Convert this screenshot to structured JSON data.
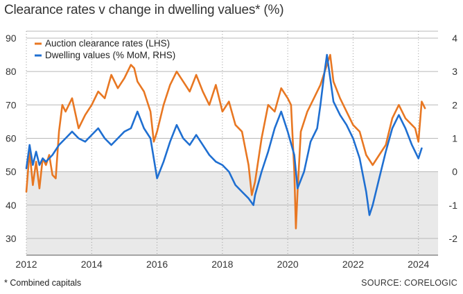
{
  "title": "Clearance rates v change in dwelling values* (%)",
  "footnote": "* Combined capitals",
  "source": "SOURCE: CORELOGIC",
  "chart_data": {
    "type": "line",
    "title": "Clearance rates v change in dwelling values* (%)",
    "x_ticks": [
      "2012",
      "2014",
      "2016",
      "2018",
      "2020",
      "2022",
      "2024"
    ],
    "x_range": [
      2012,
      2024.6
    ],
    "y_left": {
      "label": "LHS",
      "ticks": [
        "30",
        "40",
        "50",
        "60",
        "70",
        "80",
        "90"
      ],
      "range": [
        25,
        90
      ]
    },
    "y_right": {
      "label": "RHS",
      "ticks": [
        "-2",
        "-1",
        "0",
        "1",
        "2",
        "3",
        "4"
      ],
      "range": [
        -2.5,
        4
      ]
    },
    "shaded_region": "below 50 (LHS) / below 0 (RHS)",
    "grid": "vertical dotted lines at year ticks",
    "legend_position": "top-left",
    "series": [
      {
        "name": "Auction clearance rates (LHS)",
        "axis": "left",
        "color": "#E87722",
        "x": [
          2012.0,
          2012.1,
          2012.2,
          2012.3,
          2012.4,
          2012.5,
          2012.6,
          2012.7,
          2012.8,
          2012.9,
          2013.0,
          2013.1,
          2013.2,
          2013.4,
          2013.6,
          2013.8,
          2014.0,
          2014.2,
          2014.4,
          2014.6,
          2014.8,
          2015.0,
          2015.2,
          2015.3,
          2015.4,
          2015.6,
          2015.8,
          2015.9,
          2016.0,
          2016.2,
          2016.4,
          2016.6,
          2016.8,
          2017.0,
          2017.2,
          2017.4,
          2017.6,
          2017.8,
          2018.0,
          2018.2,
          2018.4,
          2018.6,
          2018.8,
          2018.9,
          2019.0,
          2019.2,
          2019.4,
          2019.6,
          2019.8,
          2020.0,
          2020.1,
          2020.2,
          2020.25,
          2020.3,
          2020.4,
          2020.6,
          2020.8,
          2021.0,
          2021.2,
          2021.3,
          2021.4,
          2021.6,
          2021.8,
          2022.0,
          2022.2,
          2022.4,
          2022.6,
          2022.8,
          2023.0,
          2023.2,
          2023.4,
          2023.6,
          2023.8,
          2023.9,
          2024.0,
          2024.1,
          2024.2
        ],
        "values": [
          44,
          56,
          46,
          53,
          45,
          54,
          52,
          55,
          49,
          48,
          62,
          70,
          68,
          72,
          63,
          67,
          70,
          74,
          72,
          79,
          75,
          78,
          82,
          81,
          77,
          74,
          68,
          59,
          62,
          70,
          76,
          80,
          77,
          74,
          79,
          74,
          70,
          76,
          68,
          71,
          64,
          62,
          52,
          43,
          47,
          60,
          70,
          68,
          75,
          72,
          70,
          50,
          33,
          44,
          62,
          68,
          72,
          76,
          82,
          85,
          77,
          72,
          68,
          64,
          62,
          55,
          52,
          55,
          58,
          66,
          70,
          66,
          64,
          63,
          59,
          71,
          69
        ]
      },
      {
        "name": "Dwelling values (% MoM, RHS)",
        "axis": "right",
        "color": "#1F6FD1",
        "x": [
          2012.0,
          2012.1,
          2012.2,
          2012.3,
          2012.4,
          2012.5,
          2012.6,
          2012.8,
          2013.0,
          2013.2,
          2013.4,
          2013.6,
          2013.8,
          2014.0,
          2014.2,
          2014.4,
          2014.6,
          2014.8,
          2015.0,
          2015.2,
          2015.4,
          2015.6,
          2015.8,
          2016.0,
          2016.2,
          2016.4,
          2016.6,
          2016.8,
          2017.0,
          2017.2,
          2017.4,
          2017.6,
          2017.8,
          2018.0,
          2018.2,
          2018.4,
          2018.6,
          2018.8,
          2018.95,
          2019.0,
          2019.2,
          2019.4,
          2019.6,
          2019.8,
          2020.0,
          2020.2,
          2020.3,
          2020.5,
          2020.7,
          2020.9,
          2021.0,
          2021.1,
          2021.2,
          2021.3,
          2021.4,
          2021.6,
          2021.8,
          2022.0,
          2022.2,
          2022.4,
          2022.5,
          2022.6,
          2022.8,
          2023.0,
          2023.2,
          2023.4,
          2023.6,
          2023.8,
          2024.0,
          2024.1
        ],
        "values": [
          0.1,
          0.8,
          0.2,
          0.6,
          0.2,
          0.4,
          0.3,
          0.5,
          0.8,
          1.0,
          1.2,
          1.0,
          0.9,
          1.1,
          1.3,
          1.0,
          0.8,
          1.0,
          1.2,
          1.3,
          1.8,
          1.3,
          1.0,
          -0.2,
          0.3,
          0.9,
          1.4,
          1.0,
          0.8,
          1.1,
          0.8,
          0.5,
          0.3,
          0.2,
          0.0,
          -0.4,
          -0.6,
          -0.8,
          -1.0,
          -0.7,
          0.0,
          0.6,
          1.3,
          1.8,
          1.2,
          0.5,
          -0.5,
          0.0,
          0.9,
          1.3,
          2.0,
          2.8,
          3.5,
          2.8,
          2.1,
          1.7,
          1.4,
          1.0,
          0.4,
          -0.6,
          -1.3,
          -1.0,
          -0.2,
          0.6,
          1.3,
          1.7,
          1.3,
          0.8,
          0.4,
          0.7
        ]
      }
    ]
  }
}
